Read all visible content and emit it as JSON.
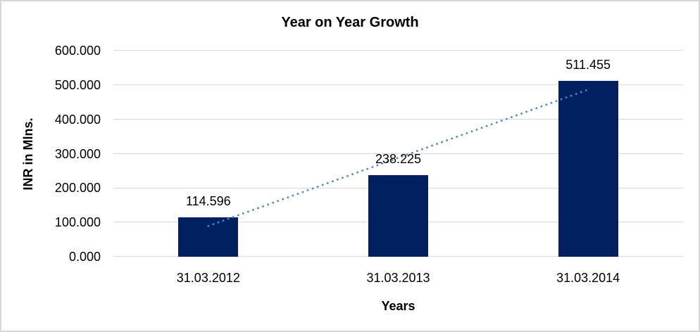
{
  "chart_data": {
    "type": "bar",
    "title": "Year on Year Growth",
    "xlabel": "Years",
    "ylabel": "INR in Mlns.",
    "categories": [
      "31.03.2012",
      "31.03.2013",
      "31.03.2014"
    ],
    "values": [
      114.596,
      238.225,
      511.455
    ],
    "data_labels": [
      "114.596",
      "238.225",
      "511.455"
    ],
    "ylim": [
      0,
      600
    ],
    "y_tick_step": 100,
    "y_tick_labels": [
      "0.000",
      "100.000",
      "200.000",
      "300.000",
      "400.000",
      "500.000",
      "600.000"
    ],
    "grid": true,
    "legend_position": "none",
    "colors": {
      "bar": "#002060",
      "trendline": "#5087c7",
      "gridline": "#d9d9d9",
      "text": "#000000",
      "frame_border": "#d6d6d6",
      "background": "#ffffff"
    },
    "trendline": {
      "kind": "linear",
      "style": "dotted"
    }
  }
}
